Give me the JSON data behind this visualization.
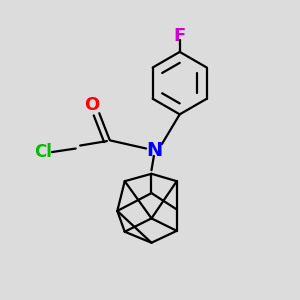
{
  "background_color": "#dcdcdc",
  "figure_size": [
    3.0,
    3.0
  ],
  "dpi": 100,
  "atoms": {
    "F": {
      "label": "F",
      "color": "#cc00cc",
      "fontsize": 13,
      "fontweight": "bold"
    },
    "O": {
      "label": "O",
      "color": "#ff0000",
      "fontsize": 13,
      "fontweight": "bold"
    },
    "N": {
      "label": "N",
      "color": "#0000ff",
      "fontsize": 14,
      "fontweight": "bold"
    },
    "Cl": {
      "label": "Cl",
      "color": "#00bb00",
      "fontsize": 12,
      "fontweight": "bold"
    }
  },
  "bond_color": "#000000",
  "bond_lw": 1.6
}
